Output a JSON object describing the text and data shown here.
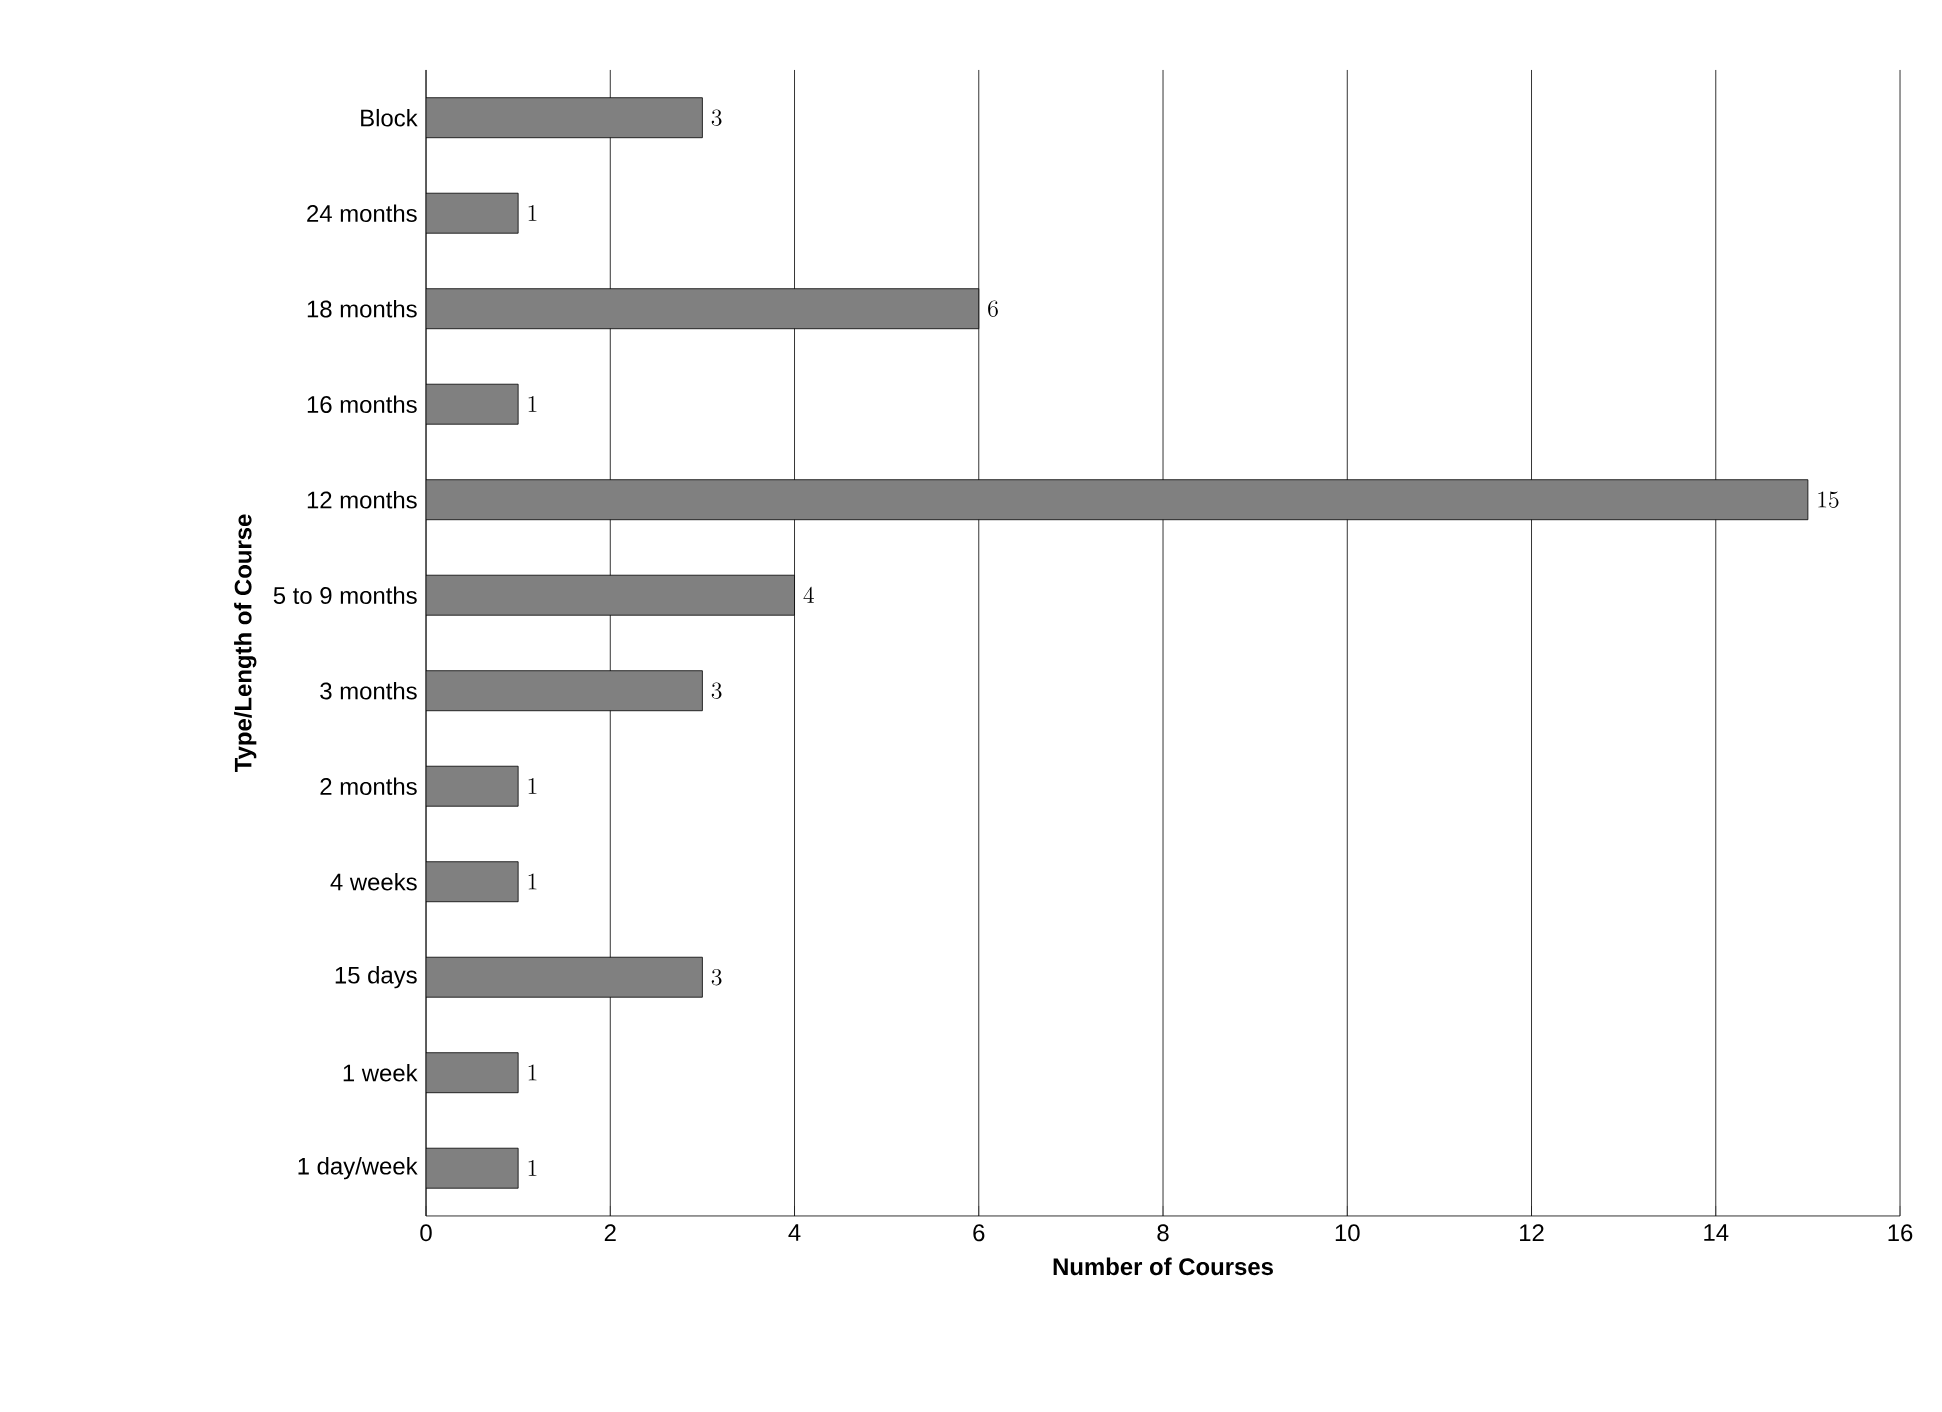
{
  "chart_data": {
    "type": "bar",
    "orientation": "horizontal",
    "xlabel": "Number of Courses",
    "ylabel": "Type/Length of Course",
    "categories": [
      "Block",
      "24 months",
      "18 months",
      "16 months",
      "12 months",
      "5 to 9 months",
      "3 months",
      "2 months",
      "4 weeks",
      "15 days",
      "1 week",
      "1 day/week"
    ],
    "values": [
      3,
      1,
      6,
      1,
      15,
      4,
      3,
      1,
      1,
      3,
      1,
      1
    ],
    "color": "#808080",
    "xlim": [
      0,
      16
    ],
    "xticks": [
      0,
      2,
      4,
      6,
      8,
      10,
      12,
      14,
      16
    ],
    "grid": "x",
    "data_labels": true
  }
}
